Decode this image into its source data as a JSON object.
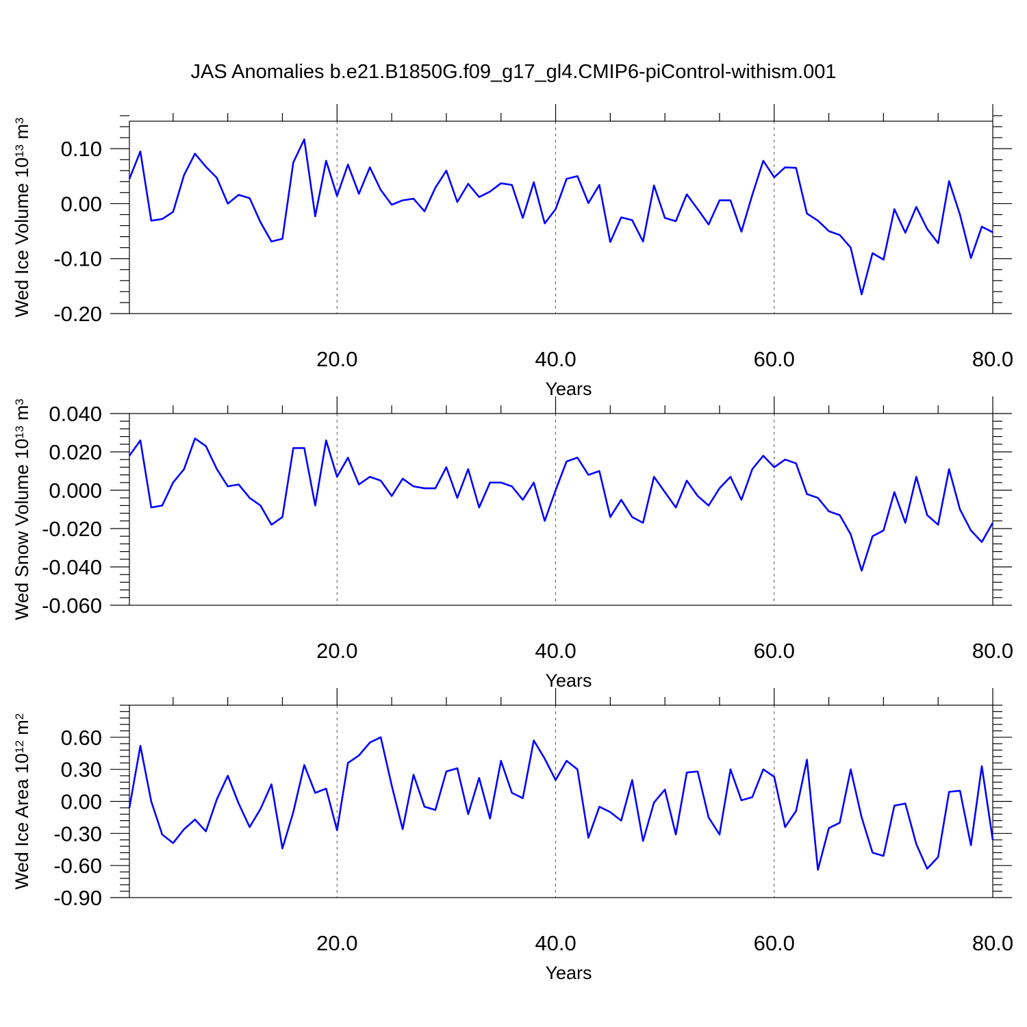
{
  "title": "JAS Anomalies b.e21.B1850G.f09_g17_gl4.CMIP6-piControl-withism.001",
  "colors": {
    "series": "#0000ff",
    "axes": "#000000",
    "grid": "#555555"
  },
  "chart_data": [
    {
      "type": "line",
      "title": "",
      "xlabel": "Years",
      "ylabel": "Wed Ice Volume 10",
      "ylabel_exponent": "13",
      "ylabel_unit": " m",
      "ylabel_unit_exponent": "3",
      "xlim": [
        1,
        80
      ],
      "ylim": [
        -0.2,
        0.15
      ],
      "xticks": [
        20,
        40,
        60,
        80
      ],
      "xtick_labels": [
        "20.0",
        "40.0",
        "60.0",
        "80.0"
      ],
      "yticks": [
        -0.2,
        -0.1,
        0.0,
        0.1
      ],
      "ytick_labels": [
        "-0.20",
        "-0.10",
        "0.00",
        "0.10"
      ],
      "grid": "vertical dashed lines at major x ticks",
      "series": [
        {
          "x": [
            1,
            2,
            3,
            4,
            5,
            6,
            7,
            8,
            9,
            10,
            11,
            12,
            13,
            14,
            15,
            16,
            17,
            18,
            19,
            20,
            21,
            22,
            23,
            24,
            25,
            26,
            27,
            28,
            29,
            30,
            31,
            32,
            33,
            34,
            35,
            36,
            37,
            38,
            39,
            40,
            41,
            42,
            43,
            44,
            45,
            46,
            47,
            48,
            49,
            50,
            51,
            52,
            53,
            54,
            55,
            56,
            57,
            58,
            59,
            60,
            61,
            62,
            63,
            64,
            65,
            66,
            67,
            68,
            69,
            70,
            71,
            72,
            73,
            74,
            75,
            76,
            77,
            78,
            79,
            80
          ],
          "values": [
            0.045,
            0.095,
            -0.031,
            -0.028,
            -0.015,
            0.052,
            0.091,
            0.067,
            0.047,
            0.0,
            0.016,
            0.01,
            -0.034,
            -0.069,
            -0.064,
            0.075,
            0.117,
            -0.023,
            0.078,
            0.014,
            0.071,
            0.018,
            0.066,
            0.025,
            -0.002,
            0.006,
            0.009,
            -0.014,
            0.029,
            0.06,
            0.003,
            0.036,
            0.012,
            0.022,
            0.037,
            0.034,
            -0.026,
            0.039,
            -0.036,
            -0.01,
            0.045,
            0.05,
            0.001,
            0.034,
            -0.07,
            -0.025,
            -0.03,
            -0.069,
            0.033,
            -0.026,
            -0.032,
            0.017,
            -0.01,
            -0.038,
            0.006,
            0.006,
            -0.051,
            0.016,
            0.078,
            0.048,
            0.066,
            0.065,
            -0.018,
            -0.031,
            -0.05,
            -0.057,
            -0.08,
            -0.165,
            -0.09,
            -0.102,
            -0.01,
            -0.053,
            -0.006,
            -0.046,
            -0.072,
            0.041,
            -0.02,
            -0.099,
            -0.042,
            -0.052
          ]
        }
      ]
    },
    {
      "type": "line",
      "title": "",
      "xlabel": "Years",
      "ylabel": "Wed Snow Volume 10",
      "ylabel_exponent": "13",
      "ylabel_unit": " m",
      "ylabel_unit_exponent": "3",
      "xlim": [
        1,
        80
      ],
      "ylim": [
        -0.06,
        0.04
      ],
      "xticks": [
        20,
        40,
        60,
        80
      ],
      "xtick_labels": [
        "20.0",
        "40.0",
        "60.0",
        "80.0"
      ],
      "yticks": [
        -0.06,
        -0.04,
        -0.02,
        0.0,
        0.02,
        0.04
      ],
      "ytick_labels": [
        "-0.060",
        "-0.040",
        "-0.020",
        "0.000",
        "0.020",
        "0.040"
      ],
      "grid": "vertical dashed lines at major x ticks",
      "series": [
        {
          "x": [
            1,
            2,
            3,
            4,
            5,
            6,
            7,
            8,
            9,
            10,
            11,
            12,
            13,
            14,
            15,
            16,
            17,
            18,
            19,
            20,
            21,
            22,
            23,
            24,
            25,
            26,
            27,
            28,
            29,
            30,
            31,
            32,
            33,
            34,
            35,
            36,
            37,
            38,
            39,
            40,
            41,
            42,
            43,
            44,
            45,
            46,
            47,
            48,
            49,
            50,
            51,
            52,
            53,
            54,
            55,
            56,
            57,
            58,
            59,
            60,
            61,
            62,
            63,
            64,
            65,
            66,
            67,
            68,
            69,
            70,
            71,
            72,
            73,
            74,
            75,
            76,
            77,
            78,
            79,
            80
          ],
          "values": [
            0.018,
            0.026,
            -0.009,
            -0.008,
            0.004,
            0.011,
            0.027,
            0.023,
            0.011,
            0.002,
            0.003,
            -0.004,
            -0.008,
            -0.018,
            -0.014,
            0.022,
            0.022,
            -0.008,
            0.026,
            0.007,
            0.017,
            0.003,
            0.007,
            0.005,
            -0.003,
            0.006,
            0.002,
            0.001,
            0.001,
            0.012,
            -0.004,
            0.011,
            -0.009,
            0.004,
            0.004,
            0.002,
            -0.005,
            0.004,
            -0.016,
            0.0,
            0.015,
            0.017,
            0.008,
            0.01,
            -0.014,
            -0.005,
            -0.014,
            -0.017,
            0.007,
            -0.001,
            -0.009,
            0.005,
            -0.003,
            -0.008,
            0.001,
            0.007,
            -0.005,
            0.011,
            0.018,
            0.012,
            0.016,
            0.014,
            -0.002,
            -0.004,
            -0.011,
            -0.013,
            -0.023,
            -0.042,
            -0.024,
            -0.021,
            -0.001,
            -0.017,
            0.007,
            -0.013,
            -0.018,
            0.011,
            -0.01,
            -0.021,
            -0.027,
            -0.017
          ]
        }
      ]
    },
    {
      "type": "line",
      "title": "",
      "xlabel": "Years",
      "ylabel": "Wed Ice Area 10",
      "ylabel_exponent": "12",
      "ylabel_unit": " m",
      "ylabel_unit_exponent": "2",
      "xlim": [
        1,
        80
      ],
      "ylim": [
        -0.9,
        0.9
      ],
      "xticks": [
        20,
        40,
        60,
        80
      ],
      "xtick_labels": [
        "20.0",
        "40.0",
        "60.0",
        "80.0"
      ],
      "yticks": [
        -0.9,
        -0.6,
        -0.3,
        0.0,
        0.3,
        0.6
      ],
      "ytick_labels": [
        "-0.90",
        "-0.60",
        "-0.30",
        "0.00",
        "0.30",
        "0.60"
      ],
      "grid": "vertical dashed lines at major x ticks",
      "series": [
        {
          "x": [
            1,
            2,
            3,
            4,
            5,
            6,
            7,
            8,
            9,
            10,
            11,
            12,
            13,
            14,
            15,
            16,
            17,
            18,
            19,
            20,
            21,
            22,
            23,
            24,
            25,
            26,
            27,
            28,
            29,
            30,
            31,
            32,
            33,
            34,
            35,
            36,
            37,
            38,
            39,
            40,
            41,
            42,
            43,
            44,
            45,
            46,
            47,
            48,
            49,
            50,
            51,
            52,
            53,
            54,
            55,
            56,
            57,
            58,
            59,
            60,
            61,
            62,
            63,
            64,
            65,
            66,
            67,
            68,
            69,
            70,
            71,
            72,
            73,
            74,
            75,
            76,
            77,
            78,
            79,
            80
          ],
          "values": [
            -0.06,
            0.52,
            0.0,
            -0.31,
            -0.39,
            -0.26,
            -0.17,
            -0.28,
            0.02,
            0.24,
            -0.02,
            -0.24,
            -0.07,
            0.16,
            -0.44,
            -0.1,
            0.34,
            0.08,
            0.12,
            -0.27,
            0.36,
            0.43,
            0.55,
            0.6,
            0.15,
            -0.26,
            0.25,
            -0.05,
            -0.08,
            0.28,
            0.31,
            -0.12,
            0.22,
            -0.16,
            0.38,
            0.08,
            0.03,
            0.57,
            0.4,
            0.2,
            0.38,
            0.3,
            -0.34,
            -0.05,
            -0.1,
            -0.18,
            0.2,
            -0.37,
            -0.01,
            0.11,
            -0.31,
            0.27,
            0.28,
            -0.15,
            -0.31,
            0.3,
            0.01,
            0.04,
            0.3,
            0.23,
            -0.24,
            -0.09,
            0.39,
            -0.64,
            -0.25,
            -0.2,
            0.3,
            -0.15,
            -0.48,
            -0.51,
            -0.04,
            -0.02,
            -0.4,
            -0.63,
            -0.52,
            0.09,
            0.1,
            -0.41,
            0.33,
            -0.36
          ]
        }
      ]
    }
  ]
}
